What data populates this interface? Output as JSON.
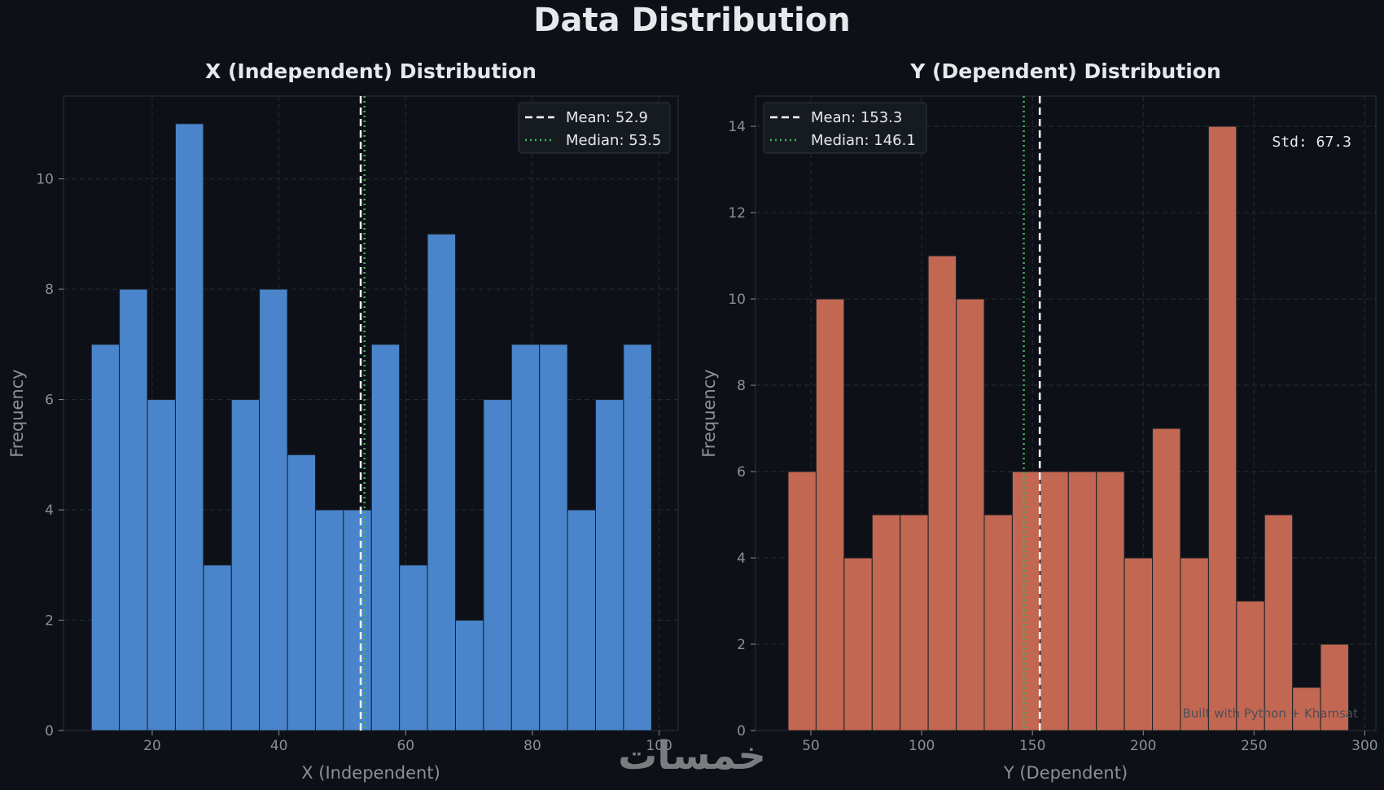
{
  "figure": {
    "suptitle": "Data Distribution",
    "watermark": "Built with Python + Khamsat",
    "logo_text": "خمسات"
  },
  "colors": {
    "background": "#0d1017",
    "grid": "#262b33",
    "spine": "#2a2f38",
    "text": "#e6e8eb",
    "muted": "#8b9097",
    "x_bar": "#4a85cb",
    "y_bar": "#c26752",
    "mean_line": "#ffffff",
    "median_line": "#3fb950",
    "legend_bg": "#161b22"
  },
  "chart_data": [
    {
      "type": "bar",
      "title": "X (Independent) Distribution",
      "xlabel": "X (Independent)",
      "ylabel": "Frequency",
      "xlim": [
        6,
        103
      ],
      "ylim": [
        0,
        11.5
      ],
      "xticks": [
        20,
        40,
        60,
        80,
        100
      ],
      "yticks": [
        0,
        2,
        4,
        6,
        8,
        10
      ],
      "bin_start": 10.4,
      "bin_width": 4.42,
      "values": [
        7,
        8,
        6,
        11,
        3,
        6,
        8,
        5,
        4,
        4,
        7,
        3,
        9,
        2,
        6,
        7,
        7,
        4,
        6,
        7
      ],
      "mean": 52.9,
      "median": 53.5,
      "legend": [
        "Mean: 52.9",
        "Median: 53.5"
      ],
      "legend_loc": "top-right",
      "grid": true
    },
    {
      "type": "bar",
      "title": "Y (Dependent) Distribution",
      "xlabel": "Y (Dependent)",
      "ylabel": "Frequency",
      "xlim": [
        25,
        305
      ],
      "ylim": [
        0,
        14.7
      ],
      "xticks": [
        50,
        100,
        150,
        200,
        250,
        300
      ],
      "yticks": [
        0,
        2,
        4,
        6,
        8,
        10,
        12,
        14
      ],
      "bin_start": 39.7,
      "bin_width": 12.65,
      "values": [
        6,
        10,
        4,
        5,
        5,
        11,
        10,
        5,
        6,
        6,
        6,
        6,
        4,
        7,
        4,
        14,
        3,
        5,
        1,
        2
      ],
      "mean": 153.3,
      "median": 146.1,
      "legend": [
        "Mean: 153.3",
        "Median: 146.1"
      ],
      "legend_loc": "top-left",
      "annotation": "Std: 67.3",
      "grid": true
    }
  ]
}
